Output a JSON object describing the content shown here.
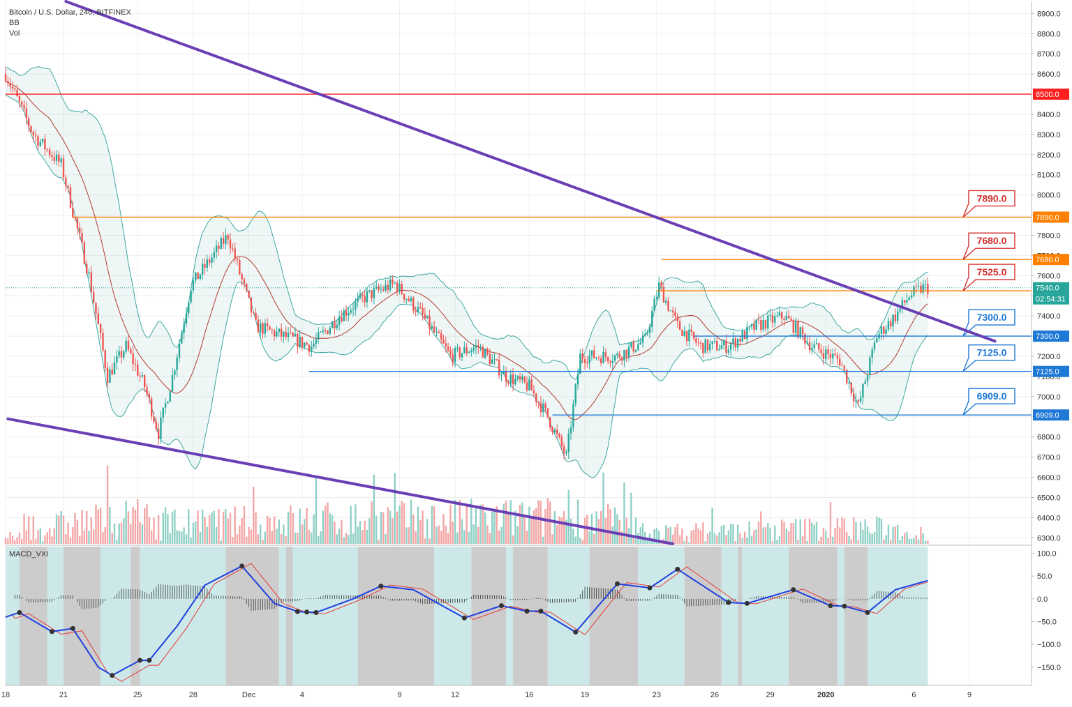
{
  "legend": {
    "symbol": "Bitcoin / U.S. Dollar, 240, BITFINEX",
    "indicator_bb": "BB",
    "indicator_vol": "Vol",
    "macd": "MACD_VXI"
  },
  "colors": {
    "up": "#26a69a",
    "down": "#ef5350",
    "up_vol": "#8fd0c6",
    "down_vol": "#f4a6a6",
    "trendline": "#6a3fb5",
    "resistance": "#ff8000",
    "level_8500": "#ff1f1f",
    "support": "#1e78d6",
    "bb_band": "#3fa7a0",
    "bb_basis": "#b5382f",
    "macd_line": "#1f3fe0",
    "signal_line": "#e53935",
    "macd_bg_cyan": "#cde8e8",
    "macd_bg_gray": "#cccccc"
  },
  "chart_data": {
    "type": "candlestick",
    "title": "Bitcoin / U.S. Dollar, 240, BITFINEX",
    "price_axis": {
      "ticks": [
        "8900.0",
        "8800.0",
        "8700.0",
        "8600.0",
        "8500.0",
        "8400.0",
        "8300.0",
        "8200.0",
        "8100.0",
        "8000.0",
        "7900.0",
        "7800.0",
        "7700.0",
        "7600.0",
        "7500.0",
        "7400.0",
        "7300.0",
        "7200.0",
        "7100.0",
        "7000.0",
        "6900.0",
        "6800.0",
        "6700.0",
        "6600.0",
        "6500.0",
        "6400.0",
        "6300.0"
      ],
      "ylim": [
        6270,
        8960
      ]
    },
    "time_axis": {
      "ticks": [
        "18",
        "21",
        "25",
        "28",
        "Dec",
        "4",
        "9",
        "12",
        "16",
        "19",
        "23",
        "26",
        "29",
        "2020",
        "6",
        "9"
      ]
    },
    "price_keypoints": [
      {
        "t": 0,
        "price": 8600
      },
      {
        "t": 12,
        "price": 8300
      },
      {
        "t": 24,
        "price": 8150
      },
      {
        "t": 36,
        "price": 7600
      },
      {
        "t": 44,
        "price": 7100
      },
      {
        "t": 52,
        "price": 7250
      },
      {
        "t": 60,
        "price": 7050
      },
      {
        "t": 66,
        "price": 6820
      },
      {
        "t": 72,
        "price": 7100
      },
      {
        "t": 80,
        "price": 7550
      },
      {
        "t": 96,
        "price": 7800
      },
      {
        "t": 108,
        "price": 7350
      },
      {
        "t": 120,
        "price": 7300
      },
      {
        "t": 132,
        "price": 7250
      },
      {
        "t": 144,
        "price": 7400
      },
      {
        "t": 156,
        "price": 7500
      },
      {
        "t": 168,
        "price": 7560
      },
      {
        "t": 180,
        "price": 7400
      },
      {
        "t": 192,
        "price": 7200
      },
      {
        "t": 204,
        "price": 7250
      },
      {
        "t": 216,
        "price": 7100
      },
      {
        "t": 226,
        "price": 7050
      },
      {
        "t": 234,
        "price": 6900
      },
      {
        "t": 242,
        "price": 6700
      },
      {
        "t": 248,
        "price": 7200
      },
      {
        "t": 254,
        "price": 7200
      },
      {
        "t": 264,
        "price": 7200
      },
      {
        "t": 276,
        "price": 7280
      },
      {
        "t": 282,
        "price": 7550
      },
      {
        "t": 290,
        "price": 7350
      },
      {
        "t": 300,
        "price": 7250
      },
      {
        "t": 312,
        "price": 7250
      },
      {
        "t": 324,
        "price": 7350
      },
      {
        "t": 336,
        "price": 7400
      },
      {
        "t": 348,
        "price": 7250
      },
      {
        "t": 360,
        "price": 7180
      },
      {
        "t": 368,
        "price": 6950
      },
      {
        "t": 376,
        "price": 7300
      },
      {
        "t": 384,
        "price": 7400
      },
      {
        "t": 390,
        "price": 7500
      },
      {
        "t": 396,
        "price": 7540
      }
    ],
    "volume_keypoints": [
      {
        "t": 0,
        "v": 0.2
      },
      {
        "t": 28,
        "v": 0.75
      },
      {
        "t": 56,
        "v": 0.9
      },
      {
        "t": 80,
        "v": 0.7
      },
      {
        "t": 134,
        "v": 0.85
      },
      {
        "t": 240,
        "v": 0.95
      },
      {
        "t": 248,
        "v": 1.0
      },
      {
        "t": 282,
        "v": 0.4
      },
      {
        "t": 370,
        "v": 0.6
      },
      {
        "t": 396,
        "v": 0.4
      }
    ],
    "trendlines": [
      {
        "name": "upper-trendline",
        "from": {
          "t": 26,
          "price": 8960
        },
        "to": {
          "t": 427,
          "price": 7275
        }
      },
      {
        "name": "lower-trendline",
        "from": {
          "t": 1,
          "price": 6890
        },
        "to": {
          "t": 288,
          "price": 6270
        }
      }
    ],
    "levels": [
      {
        "price": 8500,
        "label": "8500.0",
        "kind": "level_8500",
        "from_t": 0
      },
      {
        "price": 7890,
        "label": "7890.0",
        "kind": "resistance",
        "from_t": 29,
        "callout": "7890.0"
      },
      {
        "price": 7680,
        "label": "7680.0",
        "kind": "resistance",
        "from_t": 283,
        "callout": "7680.0"
      },
      {
        "price": 7525,
        "label": "7525.0",
        "kind": "resistance",
        "from_t": 281,
        "callout": "7525.0"
      },
      {
        "price": 7300,
        "label": "7300.0",
        "kind": "support",
        "from_t": 297,
        "callout": "7300.0"
      },
      {
        "price": 7125,
        "label": "7125.0",
        "kind": "support",
        "from_t": 131,
        "callout": "7125.0"
      },
      {
        "price": 6909,
        "label": "6909.0",
        "kind": "support",
        "from_t": 236,
        "callout": "6909.0"
      }
    ],
    "current_price": {
      "price": 7540,
      "label": "7540.0",
      "countdown": "02:54:31"
    },
    "bollinger": {
      "period": 20,
      "stdev": 2
    },
    "macd_panel": {
      "name": "MACD_VXI",
      "ticks": [
        "100.0",
        "50.0",
        "0.0",
        "−50.0",
        "−100.0",
        "−150.0"
      ],
      "ylim": [
        -190,
        110
      ],
      "macd_keypoints": [
        {
          "t": 0,
          "v": -40
        },
        {
          "t": 6,
          "v": -30
        },
        {
          "t": 20,
          "v": -72
        },
        {
          "t": 29,
          "v": -65
        },
        {
          "t": 40,
          "v": -150
        },
        {
          "t": 46,
          "v": -168
        },
        {
          "t": 58,
          "v": -135
        },
        {
          "t": 62,
          "v": -135
        },
        {
          "t": 74,
          "v": -60
        },
        {
          "t": 86,
          "v": 30
        },
        {
          "t": 102,
          "v": 72
        },
        {
          "t": 116,
          "v": -10
        },
        {
          "t": 126,
          "v": -28
        },
        {
          "t": 134,
          "v": -30
        },
        {
          "t": 150,
          "v": 0
        },
        {
          "t": 162,
          "v": 28
        },
        {
          "t": 176,
          "v": 20
        },
        {
          "t": 198,
          "v": -42
        },
        {
          "t": 214,
          "v": -15
        },
        {
          "t": 225,
          "v": -27
        },
        {
          "t": 231,
          "v": -27
        },
        {
          "t": 246,
          "v": -73
        },
        {
          "t": 264,
          "v": 33
        },
        {
          "t": 278,
          "v": 24
        },
        {
          "t": 290,
          "v": 65
        },
        {
          "t": 312,
          "v": -8
        },
        {
          "t": 320,
          "v": -10
        },
        {
          "t": 340,
          "v": 20
        },
        {
          "t": 356,
          "v": -15
        },
        {
          "t": 362,
          "v": -16
        },
        {
          "t": 372,
          "v": -30
        },
        {
          "t": 384,
          "v": 20
        },
        {
          "t": 398,
          "v": 40
        }
      ],
      "dots_t": [
        6,
        20,
        29,
        46,
        58,
        62,
        102,
        126,
        130,
        134,
        162,
        198,
        214,
        225,
        231,
        246,
        264,
        278,
        290,
        312,
        320,
        340,
        356,
        362,
        372
      ],
      "regions": [
        {
          "from": 0,
          "to": 6,
          "c": "cyan"
        },
        {
          "from": 6,
          "to": 18,
          "c": "gray"
        },
        {
          "from": 18,
          "to": 25,
          "c": "cyan"
        },
        {
          "from": 25,
          "to": 41,
          "c": "gray"
        },
        {
          "from": 41,
          "to": 54,
          "c": "cyan"
        },
        {
          "from": 54,
          "to": 58,
          "c": "gray"
        },
        {
          "from": 58,
          "to": 95,
          "c": "cyan"
        },
        {
          "from": 95,
          "to": 118,
          "c": "gray"
        },
        {
          "from": 118,
          "to": 121,
          "c": "cyan"
        },
        {
          "from": 121,
          "to": 124,
          "c": "gray"
        },
        {
          "from": 124,
          "to": 152,
          "c": "cyan"
        },
        {
          "from": 152,
          "to": 185,
          "c": "gray"
        },
        {
          "from": 185,
          "to": 201,
          "c": "cyan"
        },
        {
          "from": 201,
          "to": 216,
          "c": "gray"
        },
        {
          "from": 216,
          "to": 219,
          "c": "cyan"
        },
        {
          "from": 219,
          "to": 234,
          "c": "gray"
        },
        {
          "from": 234,
          "to": 252,
          "c": "cyan"
        },
        {
          "from": 252,
          "to": 273,
          "c": "gray"
        },
        {
          "from": 273,
          "to": 293,
          "c": "cyan"
        },
        {
          "from": 293,
          "to": 309,
          "c": "gray"
        },
        {
          "from": 309,
          "to": 316,
          "c": "cyan"
        },
        {
          "from": 316,
          "to": 318,
          "c": "gray"
        },
        {
          "from": 318,
          "to": 338,
          "c": "cyan"
        },
        {
          "from": 338,
          "to": 359,
          "c": "gray"
        },
        {
          "from": 359,
          "to": 362,
          "c": "cyan"
        },
        {
          "from": 362,
          "to": 372,
          "c": "gray"
        },
        {
          "from": 372,
          "to": 398,
          "c": "cyan"
        }
      ]
    },
    "grid": true
  }
}
